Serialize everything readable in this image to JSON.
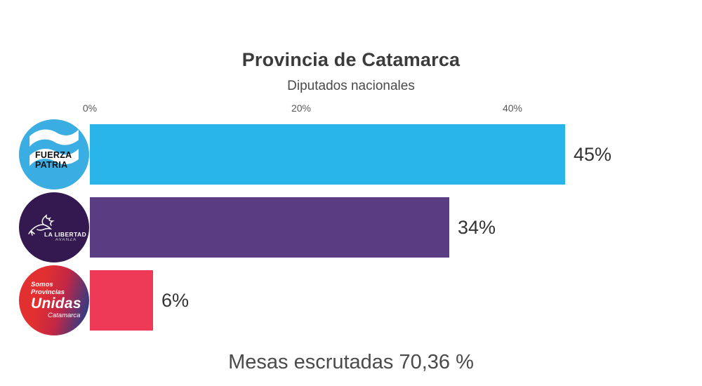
{
  "chart_data": {
    "type": "bar",
    "orientation": "horizontal",
    "title": "Provincia de Catamarca",
    "subtitle": "Diputados nacionales",
    "categories": [
      "Fuerza Patria",
      "La Libertad Avanza",
      "Somos Provincias Unidas Catamarca"
    ],
    "values": [
      45,
      34,
      6
    ],
    "value_labels": [
      "45%",
      "34%",
      "6%"
    ],
    "bar_colors": [
      "#29b5ea",
      "#5a3c82",
      "#ee3a56"
    ],
    "xlim": [
      0,
      47
    ],
    "tick_values": [
      0,
      20,
      40
    ],
    "tick_labels": [
      "0%",
      "20%",
      "40%"
    ],
    "grid": false,
    "legend": false,
    "note": "Mesas escrutadas 70,36 %"
  },
  "parties": [
    {
      "name": "Fuerza Patria",
      "logo_colors": [
        "#3aaee3"
      ],
      "logo_text": [
        "FUERZA",
        "PATRIA"
      ]
    },
    {
      "name": "La Libertad Avanza",
      "logo_colors": [
        "#33194f"
      ],
      "logo_text": [
        "LA LIBERTAD",
        "AVANZA"
      ]
    },
    {
      "name": "Somos Provincias Unidas Catamarca",
      "logo_colors": [
        "#e23030",
        "#c42745",
        "#2c3c85"
      ],
      "logo_text": [
        "Somos",
        "Provincias",
        "Unidas",
        "Catamarca"
      ]
    }
  ]
}
